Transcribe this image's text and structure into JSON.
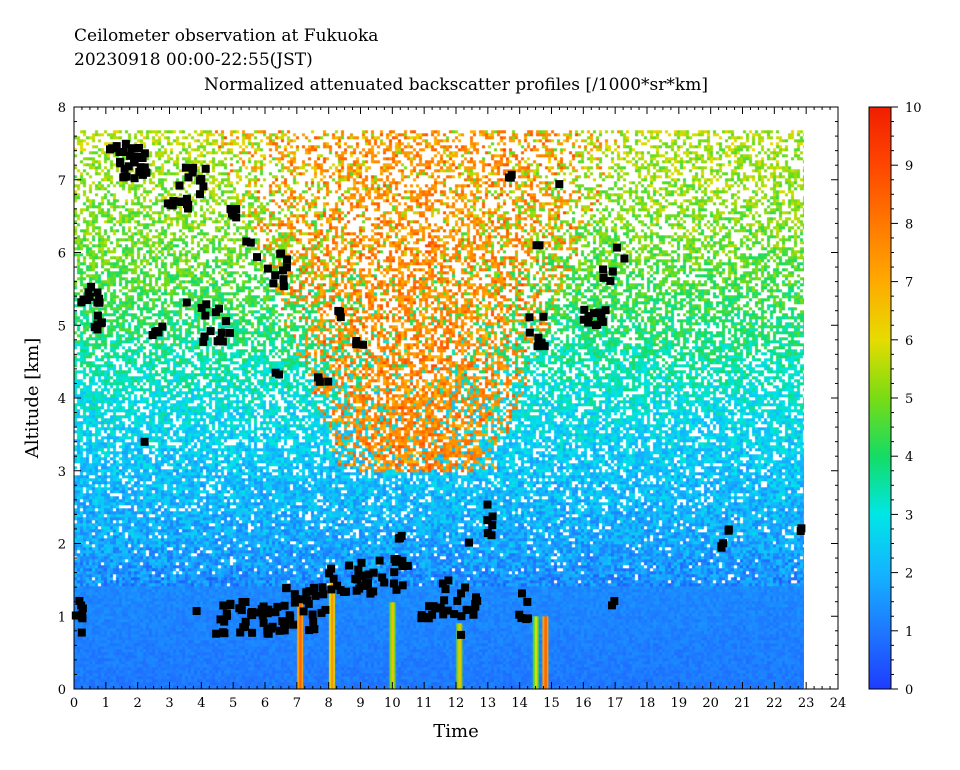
{
  "header": {
    "line1": "Ceilometer observation at Fukuoka",
    "line2": "20230918  00:00-22:55(JST)"
  },
  "chart_data": {
    "type": "heatmap",
    "title": "Normalized attenuated backscatter profiles [/1000*sr*km]",
    "xlabel": "Time",
    "ylabel": "Altitude [km]",
    "xlim": [
      0,
      24
    ],
    "ylim": [
      0,
      8
    ],
    "x_ticks": [
      "0",
      "1",
      "2",
      "3",
      "4",
      "5",
      "6",
      "7",
      "8",
      "9",
      "10",
      "11",
      "12",
      "13",
      "14",
      "15",
      "16",
      "17",
      "18",
      "19",
      "20",
      "21",
      "22",
      "23",
      "24"
    ],
    "y_ticks": [
      "0",
      "1",
      "2",
      "3",
      "4",
      "5",
      "6",
      "7",
      "8"
    ],
    "data_extent": {
      "time_end_hour": 22.92,
      "altitude_top_km": 7.68
    },
    "colorbar": {
      "range": [
        0,
        10
      ],
      "ticks": [
        "0",
        "1",
        "2",
        "3",
        "4",
        "5",
        "6",
        "7",
        "8",
        "9",
        "10"
      ],
      "colors": [
        "#1e3cff",
        "#1e78ff",
        "#14b4ff",
        "#00e6e6",
        "#14dc64",
        "#78dc14",
        "#e6dc00",
        "#ffaa00",
        "#ff7800",
        "#ff4600",
        "#f01e00"
      ]
    },
    "background_profile": [
      {
        "alt_km": 0.0,
        "value": 1.0
      },
      {
        "alt_km": 1.4,
        "value": 1.3
      },
      {
        "alt_km": 2.0,
        "value": 1.8
      },
      {
        "alt_km": 3.0,
        "value": 2.3
      },
      {
        "alt_km": 4.0,
        "value": 3.0
      },
      {
        "alt_km": 5.0,
        "value": 4.0
      },
      {
        "alt_km": 6.0,
        "value": 4.8
      },
      {
        "alt_km": 7.7,
        "value": 5.5
      }
    ],
    "high_value_region": {
      "value": 7.7,
      "center_time": 10.8,
      "top_halfwidth_h": 6.5,
      "bottom_halfwidth_h": 2.4,
      "bottom_alt_km": 3.0,
      "top_alt_km": 7.68
    },
    "plumes": [
      {
        "time": 7.1,
        "top_km": 1.2,
        "value": 8.5
      },
      {
        "time": 8.1,
        "top_km": 1.5,
        "value": 7.5
      },
      {
        "time": 10.0,
        "top_km": 1.2,
        "value": 6.5
      },
      {
        "time": 12.1,
        "top_km": 0.9,
        "value": 6.5
      },
      {
        "time": 14.5,
        "top_km": 1.0,
        "value": 6.0
      },
      {
        "time": 14.8,
        "top_km": 1.0,
        "value": 8.5
      }
    ],
    "cloud_base_clusters": [
      {
        "t0": 0.0,
        "t1": 0.3,
        "h0": 0.7,
        "h1": 1.4,
        "n": 8
      },
      {
        "t0": 0.2,
        "t1": 0.8,
        "h0": 5.3,
        "h1": 5.6,
        "n": 10
      },
      {
        "t0": 0.6,
        "t1": 1.0,
        "h0": 4.9,
        "h1": 5.2,
        "n": 6
      },
      {
        "t0": 1.0,
        "t1": 2.3,
        "h0": 7.0,
        "h1": 7.5,
        "n": 30
      },
      {
        "t0": 2.1,
        "t1": 2.3,
        "h0": 3.3,
        "h1": 3.4,
        "n": 1
      },
      {
        "t0": 2.4,
        "t1": 2.8,
        "h0": 4.8,
        "h1": 5.0,
        "n": 6
      },
      {
        "t0": 2.8,
        "t1": 3.6,
        "h0": 6.6,
        "h1": 6.8,
        "n": 12
      },
      {
        "t0": 3.3,
        "t1": 4.2,
        "h0": 6.8,
        "h1": 7.2,
        "n": 10
      },
      {
        "t0": 3.5,
        "t1": 3.7,
        "h0": 5.2,
        "h1": 5.4,
        "n": 1
      },
      {
        "t0": 3.8,
        "t1": 4.0,
        "h0": 1.0,
        "h1": 1.1,
        "n": 1
      },
      {
        "t0": 4.0,
        "t1": 4.9,
        "h0": 4.7,
        "h1": 5.3,
        "n": 14
      },
      {
        "t0": 4.9,
        "t1": 5.1,
        "h0": 6.4,
        "h1": 6.7,
        "n": 6
      },
      {
        "t0": 4.4,
        "t1": 6.6,
        "h0": 0.75,
        "h1": 1.2,
        "n": 40
      },
      {
        "t0": 5.4,
        "t1": 5.8,
        "h0": 5.8,
        "h1": 6.2,
        "n": 3
      },
      {
        "t0": 6.0,
        "t1": 6.7,
        "h0": 5.5,
        "h1": 6.0,
        "n": 10
      },
      {
        "t0": 6.3,
        "t1": 6.5,
        "h0": 4.3,
        "h1": 4.4,
        "n": 2
      },
      {
        "t0": 6.6,
        "t1": 7.9,
        "h0": 0.8,
        "h1": 1.4,
        "n": 30
      },
      {
        "t0": 7.6,
        "t1": 8.0,
        "h0": 4.2,
        "h1": 4.3,
        "n": 4
      },
      {
        "t0": 8.0,
        "t1": 10.5,
        "h0": 1.3,
        "h1": 1.8,
        "n": 40
      },
      {
        "t0": 8.3,
        "t1": 8.5,
        "h0": 5.1,
        "h1": 5.2,
        "n": 3
      },
      {
        "t0": 8.8,
        "t1": 9.1,
        "h0": 4.7,
        "h1": 4.8,
        "n": 3
      },
      {
        "t0": 10.2,
        "t1": 10.4,
        "h0": 1.9,
        "h1": 2.2,
        "n": 3
      },
      {
        "t0": 10.9,
        "t1": 11.4,
        "h0": 0.95,
        "h1": 1.15,
        "n": 8
      },
      {
        "t0": 11.4,
        "t1": 12.7,
        "h0": 1.0,
        "h1": 1.5,
        "n": 20
      },
      {
        "t0": 12.0,
        "t1": 12.2,
        "h0": 0.7,
        "h1": 0.8,
        "n": 1
      },
      {
        "t0": 12.4,
        "t1": 12.6,
        "h0": 2.0,
        "h1": 2.1,
        "n": 1
      },
      {
        "t0": 12.9,
        "t1": 13.2,
        "h0": 2.0,
        "h1": 2.6,
        "n": 6
      },
      {
        "t0": 13.6,
        "t1": 13.8,
        "h0": 7.0,
        "h1": 7.1,
        "n": 3
      },
      {
        "t0": 13.9,
        "t1": 14.3,
        "h0": 0.95,
        "h1": 1.4,
        "n": 6
      },
      {
        "t0": 14.3,
        "t1": 14.9,
        "h0": 4.7,
        "h1": 5.2,
        "n": 8
      },
      {
        "t0": 14.5,
        "t1": 14.7,
        "h0": 6.0,
        "h1": 6.1,
        "n": 2
      },
      {
        "t0": 15.1,
        "t1": 15.3,
        "h0": 6.9,
        "h1": 7.0,
        "n": 1
      },
      {
        "t0": 15.9,
        "t1": 16.8,
        "h0": 5.0,
        "h1": 5.3,
        "n": 12
      },
      {
        "t0": 16.6,
        "t1": 17.3,
        "h0": 5.5,
        "h1": 6.1,
        "n": 6
      },
      {
        "t0": 16.7,
        "t1": 17.0,
        "h0": 1.05,
        "h1": 1.3,
        "n": 2
      },
      {
        "t0": 20.3,
        "t1": 20.6,
        "h0": 1.9,
        "h1": 2.2,
        "n": 5
      },
      {
        "t0": 22.7,
        "t1": 22.95,
        "h0": 1.9,
        "h1": 2.7,
        "n": 2
      }
    ]
  }
}
